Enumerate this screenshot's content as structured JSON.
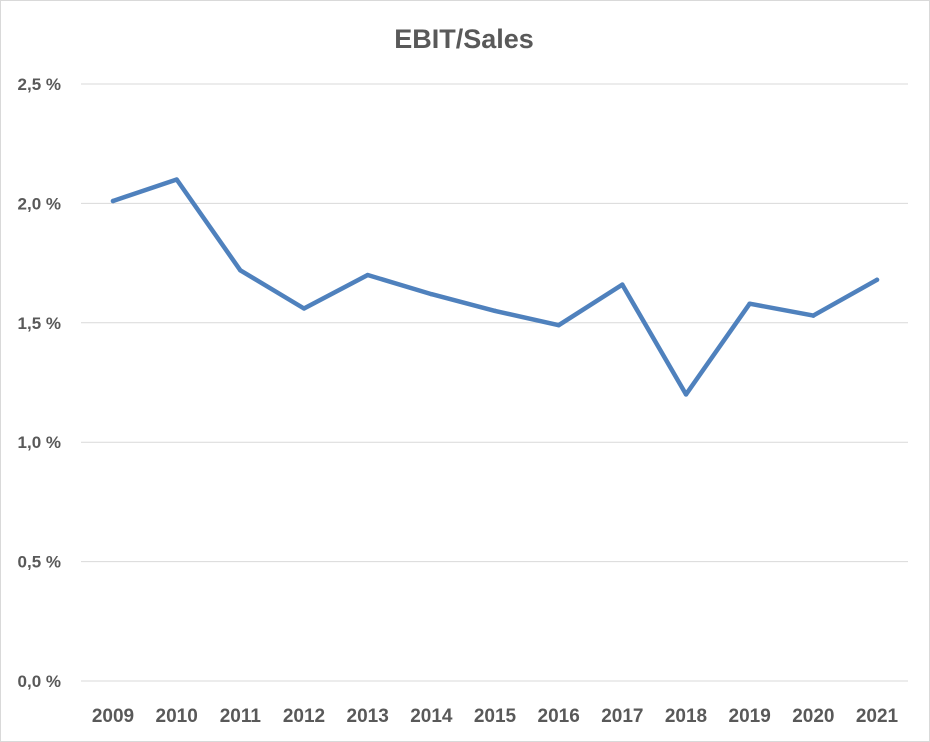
{
  "chart_data": {
    "type": "line",
    "title": "EBIT/Sales",
    "xlabel": "",
    "ylabel": "",
    "categories": [
      "2009",
      "2010",
      "2011",
      "2012",
      "2013",
      "2014",
      "2015",
      "2016",
      "2017",
      "2018",
      "2019",
      "2020",
      "2021"
    ],
    "series": [
      {
        "values": [
          2.01,
          2.1,
          1.72,
          1.56,
          1.7,
          1.62,
          1.55,
          1.49,
          1.66,
          1.2,
          1.58,
          1.53,
          1.68
        ]
      }
    ],
    "ylim": [
      0,
      2.5
    ],
    "yticks": [
      0,
      0.5,
      1.0,
      1.5,
      2.0,
      2.5
    ],
    "ytick_labels": [
      "0,0 %",
      "0,5 %",
      "1,0 %",
      "1,5 %",
      "2,0 %",
      "2,5 %"
    ],
    "grid": true,
    "legend": "none",
    "colors": {
      "line": "#4f81bd",
      "grid": "#d9d9d9",
      "text": "#595959"
    }
  }
}
